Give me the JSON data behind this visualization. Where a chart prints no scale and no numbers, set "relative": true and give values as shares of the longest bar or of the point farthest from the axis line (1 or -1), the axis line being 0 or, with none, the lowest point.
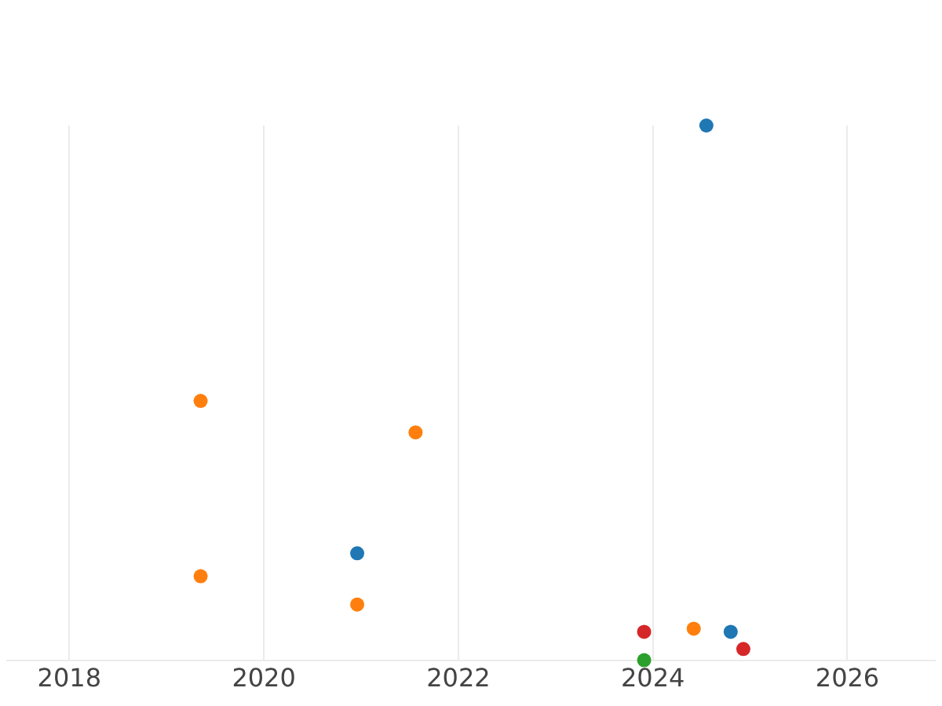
{
  "chart_data": {
    "type": "scatter",
    "relative": true,
    "grid": "x",
    "legend": false,
    "marker": "circle",
    "xlim": [
      2017.36,
      2026.9
    ],
    "xticks": [
      2018,
      2020,
      2022,
      2024,
      2026
    ],
    "series": [
      {
        "color": "#1f77b4",
        "x": [
          2024.55,
          2020.96,
          2024.8
        ],
        "values": [
          1,
          0.2,
          0.053
        ]
      },
      {
        "color": "#ff7f0e",
        "x": [
          2019.35,
          2021.56,
          2019.35,
          2020.96,
          2024.42
        ],
        "values": [
          0.485,
          0.426,
          0.157,
          0.104,
          0.059
        ]
      },
      {
        "color": "#2ca02c",
        "x": [
          2023.91
        ],
        "values": [
          0
        ]
      },
      {
        "color": "#d62728",
        "x": [
          2023.91,
          2024.93
        ],
        "values": [
          0.053,
          0.021
        ]
      }
    ]
  }
}
